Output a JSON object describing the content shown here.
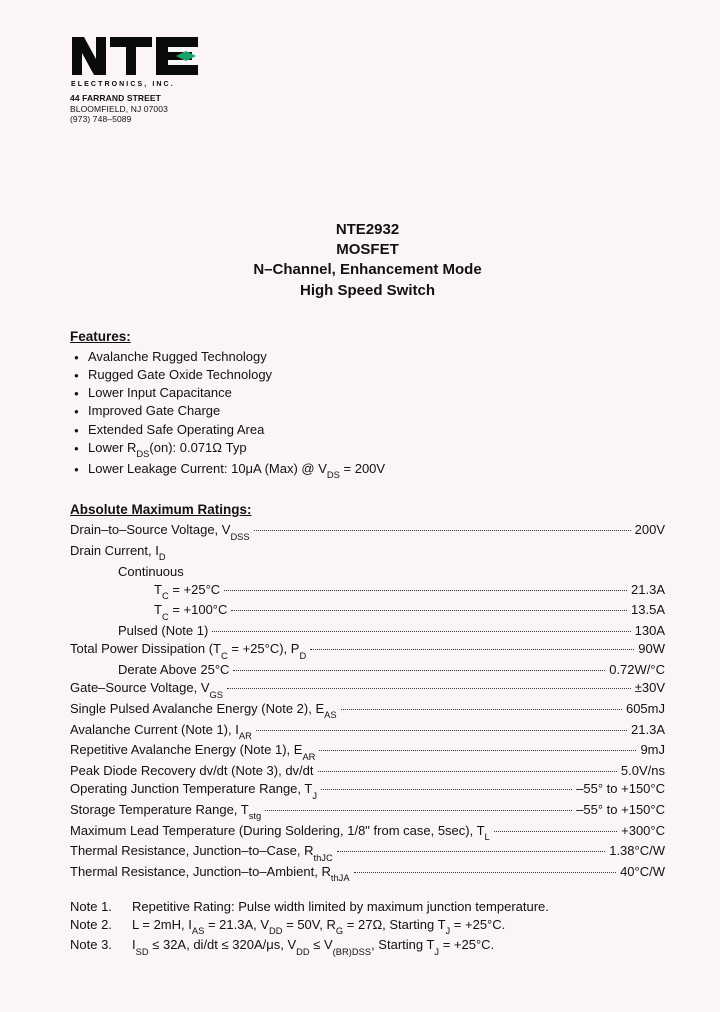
{
  "logo": {
    "company_line": "E L E C T R O N I C S,  I N C.",
    "addr1": "44 FARRAND STREET",
    "addr2": "BLOOMFIELD,  NJ  07003",
    "addr3": "(973) 748–5089",
    "accent_color": "#1aa36b"
  },
  "title": {
    "l1": "NTE2932",
    "l2": "MOSFET",
    "l3": "N–Channel, Enhancement Mode",
    "l4": "High Speed Switch"
  },
  "features": {
    "heading": "Features:",
    "items": [
      "Avalanche Rugged Technology",
      "Rugged Gate Oxide Technology",
      "Lower Input Capacitance",
      "Improved Gate Charge",
      "Extended Safe Operating Area",
      "Lower R<sub>DS</sub>(on):  0.071Ω Typ",
      "Lower Leakage Current:  10μA (Max) @ V<sub>DS</sub> = 200V"
    ]
  },
  "ratings": {
    "heading": "Absolute Maximum Ratings:",
    "rows": [
      {
        "label": "Drain–to–Source Voltage, V<sub>DSS</sub>",
        "val": "200V",
        "indent": 0,
        "dots": true
      },
      {
        "label": "Drain Current, I<sub>D</sub>",
        "val": "",
        "indent": 0,
        "dots": false
      },
      {
        "label": "Continuous",
        "val": "",
        "indent": 1,
        "dots": false
      },
      {
        "label": "T<sub>C</sub> = +25°C",
        "val": "21.3A",
        "indent": 2,
        "dots": true
      },
      {
        "label": "T<sub>C</sub> = +100°C",
        "val": "13.5A",
        "indent": 2,
        "dots": true
      },
      {
        "label": "Pulsed (Note 1)",
        "val": "130A",
        "indent": 1,
        "dots": true
      },
      {
        "label": "Total Power Dissipation (T<sub>C</sub> = +25°C), P<sub>D</sub>",
        "val": "90W",
        "indent": 0,
        "dots": true
      },
      {
        "label": "Derate Above 25°C",
        "val": "0.72W/°C",
        "indent": 1,
        "dots": true
      },
      {
        "label": "Gate–Source Voltage, V<sub>GS</sub>",
        "val": "±30V",
        "indent": 0,
        "dots": true
      },
      {
        "label": "Single Pulsed Avalanche Energy (Note 2), E<sub>AS</sub>",
        "val": "605mJ",
        "indent": 0,
        "dots": true
      },
      {
        "label": "Avalanche Current (Note 1), I<sub>AR</sub>",
        "val": "21.3A",
        "indent": 0,
        "dots": true
      },
      {
        "label": "Repetitive Avalanche Energy (Note 1), E<sub>AR</sub>",
        "val": "9mJ",
        "indent": 0,
        "dots": true
      },
      {
        "label": "Peak Diode Recovery dv/dt (Note 3), dv/dt",
        "val": "5.0V/ns",
        "indent": 0,
        "dots": true
      },
      {
        "label": "Operating Junction Temperature Range, T<sub>J</sub>",
        "val": "–55° to +150°C",
        "indent": 0,
        "dots": true
      },
      {
        "label": "Storage Temperature Range, T<sub>stg</sub>",
        "val": "–55° to +150°C",
        "indent": 0,
        "dots": true
      },
      {
        "label": "Maximum Lead Temperature (During Soldering, 1/8\" from case, 5sec), T<sub>L</sub>",
        "val": "+300°C",
        "indent": 0,
        "dots": true
      },
      {
        "label": "Thermal Resistance, Junction–to–Case, R<sub>thJC</sub>",
        "val": "1.38°C/W",
        "indent": 0,
        "dots": true
      },
      {
        "label": "Thermal Resistance, Junction–to–Ambient, R<sub>thJA</sub>",
        "val": "40°C/W",
        "indent": 0,
        "dots": true
      }
    ]
  },
  "notes": [
    {
      "key": "Note  1.",
      "text": "Repetitive Rating:  Pulse width limited by maximum junction temperature."
    },
    {
      "key": "Note  2.",
      "text": "L = 2mH, I<sub>AS</sub> = 21.3A, V<sub>DD</sub> = 50V, R<sub>G</sub> = 27Ω, Starting T<sub>J</sub> = +25°C."
    },
    {
      "key": "Note  3.",
      "text": "I<sub>SD</sub> ≤ 32A, di/dt ≤ 320A/μs, V<sub>DD</sub> ≤ V<sub>(BR)DSS</sub>, Starting T<sub>J</sub> = +25°C."
    }
  ]
}
